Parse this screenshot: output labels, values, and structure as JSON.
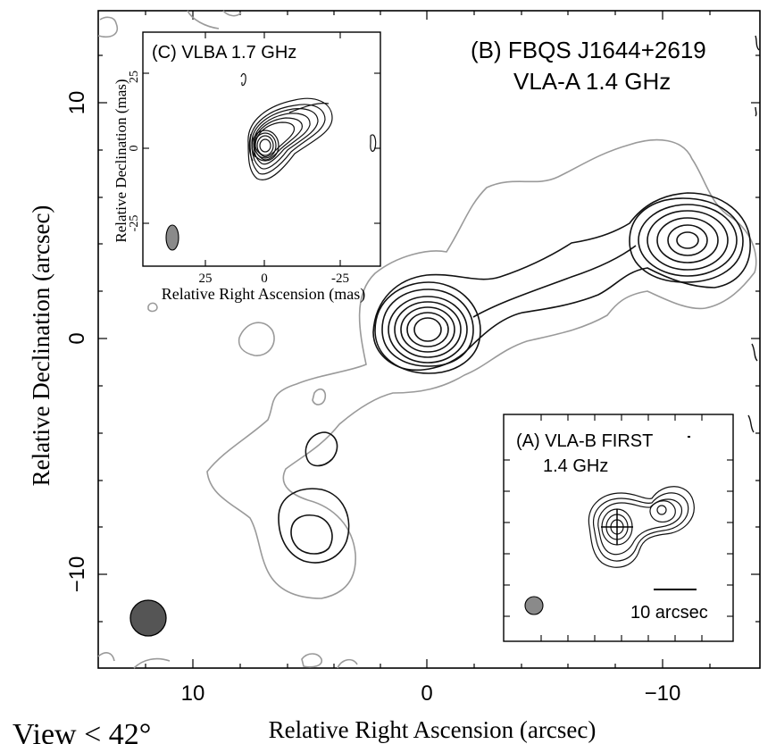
{
  "main_panel": {
    "label_line1": "(B) FBQS J1644+2619",
    "label_line2": "VLA-A   1.4 GHz",
    "x_axis_label": "Relative Right Ascension (arcsec)",
    "y_axis_label": "Relative Declination (arcsec)",
    "x_ticks": [
      "10",
      "0",
      "−10"
    ],
    "y_ticks": [
      "10",
      "0",
      "−10"
    ]
  },
  "inset_vlba": {
    "label": "(C) VLBA  1.7 GHz",
    "x_axis_label": "Relative Right Ascension (mas)",
    "y_axis_label": "Relative Declination (mas)",
    "x_ticks": [
      "25",
      "0",
      "-25"
    ],
    "y_ticks": [
      "25",
      "0",
      "-25"
    ]
  },
  "inset_first": {
    "label_line1": "(A) VLA-B  FIRST",
    "label_line2": "1.4 GHz",
    "scale_bar_label": "10 arcsec"
  },
  "footer_fragment": "View < 42°",
  "colors": {
    "contour_dark": "#111111",
    "contour_gray": "#9a9a9a",
    "beam_fill": "#555555",
    "beam_fill_light": "#8a8a8a"
  }
}
